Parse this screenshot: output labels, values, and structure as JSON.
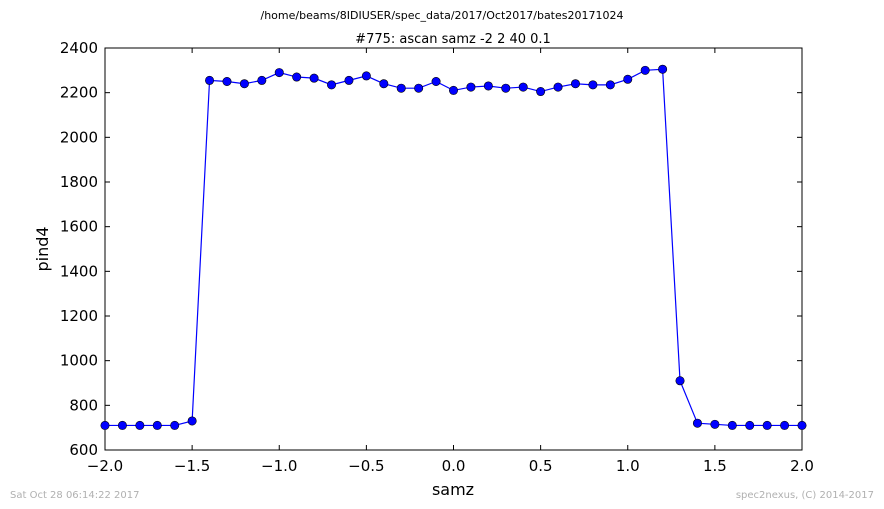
{
  "figure": {
    "suptitle": "/home/beams/8IDIUSER/spec_data/2017/Oct2017/bates20171024",
    "footer_left": "Sat Oct 28 06:14:22 2017",
    "footer_right": "spec2nexus, (C) 2014-2017"
  },
  "chart_data": {
    "type": "line",
    "title": "#775: ascan  samz -2 2  40 0.1",
    "xlabel": "samz",
    "ylabel": "pind4",
    "xlim": [
      -2.0,
      2.0
    ],
    "ylim": [
      600,
      2400
    ],
    "xticks": [
      -2.0,
      -1.5,
      -1.0,
      -0.5,
      0.0,
      0.5,
      1.0,
      1.5,
      2.0
    ],
    "xtick_labels": [
      "−2.0",
      "−1.5",
      "−1.0",
      "−0.5",
      "0.0",
      "0.5",
      "1.0",
      "1.5",
      "2.0"
    ],
    "yticks": [
      600,
      800,
      1000,
      1200,
      1400,
      1600,
      1800,
      2000,
      2200,
      2400
    ],
    "ytick_labels": [
      "600",
      "800",
      "1000",
      "1200",
      "1400",
      "1600",
      "1800",
      "2000",
      "2200",
      "2400"
    ],
    "grid": false,
    "line_color": "#0000ff",
    "marker_color": "#0000ff",
    "series": [
      {
        "x": [
          -2.0,
          -1.9,
          -1.8,
          -1.7,
          -1.6,
          -1.5,
          -1.4,
          -1.3,
          -1.2,
          -1.1,
          -1.0,
          -0.9,
          -0.8,
          -0.7,
          -0.6,
          -0.5,
          -0.4,
          -0.3,
          -0.2,
          -0.1,
          0.0,
          0.1,
          0.2,
          0.3,
          0.4,
          0.5,
          0.6,
          0.7,
          0.8,
          0.9,
          1.0,
          1.1,
          1.2,
          1.3,
          1.4,
          1.5,
          1.6,
          1.7,
          1.8,
          1.9,
          2.0
        ],
        "y": [
          710,
          710,
          710,
          710,
          710,
          730,
          2255,
          2250,
          2240,
          2255,
          2290,
          2270,
          2265,
          2235,
          2255,
          2275,
          2240,
          2220,
          2220,
          2250,
          2210,
          2225,
          2230,
          2220,
          2225,
          2205,
          2225,
          2240,
          2235,
          2235,
          2260,
          2300,
          2305,
          910,
          720,
          715,
          710,
          710,
          710,
          710,
          710
        ]
      }
    ]
  }
}
